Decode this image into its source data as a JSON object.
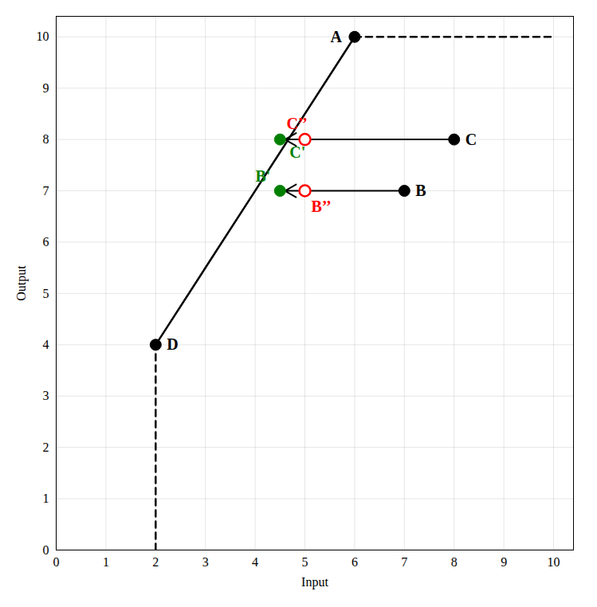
{
  "chart_data": {
    "type": "scatter",
    "xlabel": "Input",
    "ylabel": "Output",
    "xlim": [
      0,
      10.4
    ],
    "ylim": [
      0,
      10.4
    ],
    "xticks": [
      0,
      1,
      2,
      3,
      4,
      5,
      6,
      7,
      8,
      9,
      10
    ],
    "yticks": [
      0,
      1,
      2,
      3,
      4,
      5,
      6,
      7,
      8,
      9,
      10
    ],
    "grid": true,
    "series": [
      {
        "type": "line",
        "color": "black",
        "line_style": "solid",
        "x": [
          2,
          6
        ],
        "y": [
          4,
          10
        ]
      },
      {
        "type": "line",
        "color": "black",
        "line_style": "dashed",
        "x": [
          6,
          10
        ],
        "y": [
          10,
          10
        ]
      },
      {
        "type": "line",
        "color": "black",
        "line_style": "dashed",
        "x": [
          2,
          2
        ],
        "y": [
          0,
          4
        ]
      },
      {
        "type": "arrow",
        "color": "black",
        "x": [
          7,
          4.6
        ],
        "y": [
          7,
          7
        ]
      },
      {
        "type": "arrow",
        "color": "black",
        "x": [
          8,
          4.6
        ],
        "y": [
          8,
          8
        ]
      },
      {
        "type": "scatter",
        "color": "black",
        "marker": "filled",
        "x": [
          6,
          7,
          8,
          2
        ],
        "y": [
          10,
          7,
          8,
          4
        ],
        "labels": [
          "A",
          "B",
          "C",
          "D"
        ]
      },
      {
        "type": "scatter",
        "color": "green",
        "marker": "filled",
        "x": [
          4.5,
          4.5
        ],
        "y": [
          7,
          8
        ],
        "labels": [
          "B'",
          "C'"
        ]
      },
      {
        "type": "scatter",
        "color": "red",
        "marker": "hollow",
        "x": [
          5,
          5
        ],
        "y": [
          7,
          8
        ],
        "labels": [
          "B’’",
          "C’’"
        ]
      }
    ]
  }
}
